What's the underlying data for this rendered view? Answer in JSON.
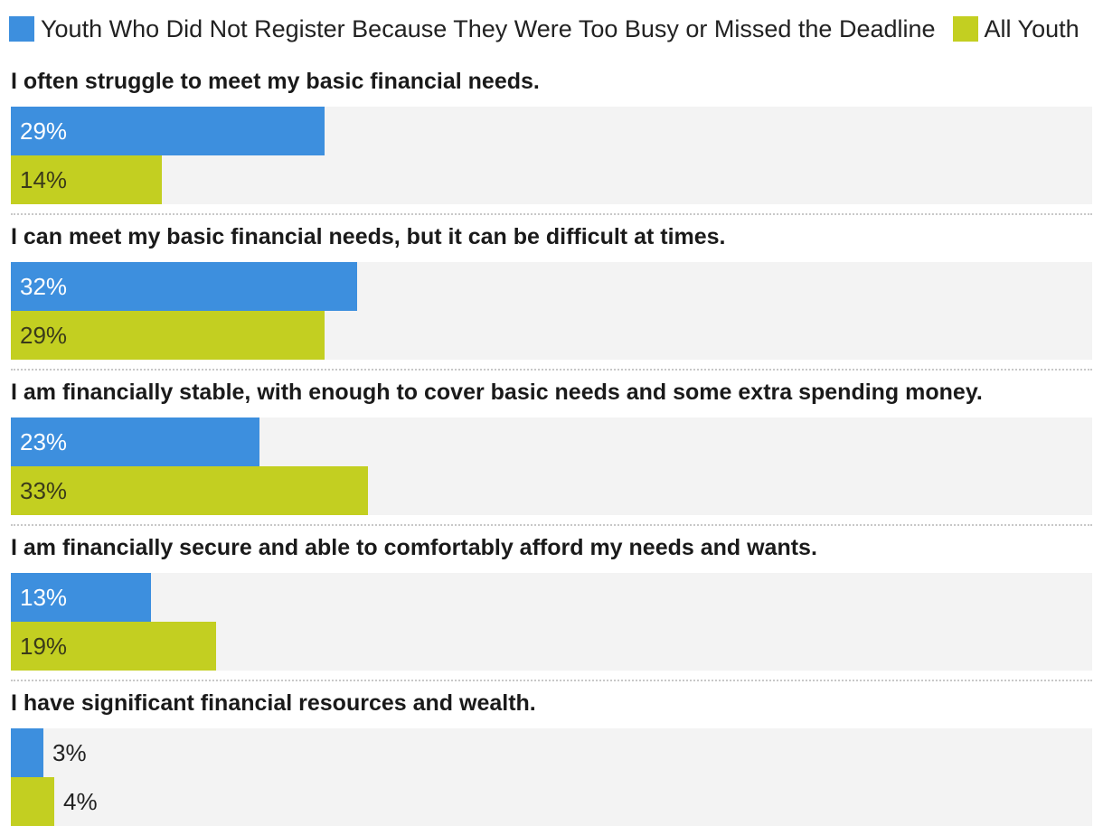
{
  "chart_data": {
    "type": "bar",
    "orientation": "horizontal",
    "xlim": [
      0,
      100
    ],
    "value_suffix": "%",
    "categories": [
      "I often struggle to meet my basic financial needs.",
      "I can meet my basic financial needs, but it can be difficult at times.",
      "I am financially stable, with enough to cover basic needs and some extra spending money.",
      "I am financially secure and able to comfortably afford my needs and wants.",
      "I have significant financial resources and wealth."
    ],
    "series": [
      {
        "name": "Youth Who Did Not Register Because They Were Too Busy or Missed the Deadline",
        "color": "#3d8fde",
        "values": [
          29,
          32,
          23,
          13,
          3
        ]
      },
      {
        "name": "All Youth",
        "color": "#c3cf21",
        "values": [
          14,
          29,
          33,
          19,
          4
        ]
      }
    ],
    "legend": "top-left",
    "grid": false,
    "value_labels": "inside-bar"
  }
}
